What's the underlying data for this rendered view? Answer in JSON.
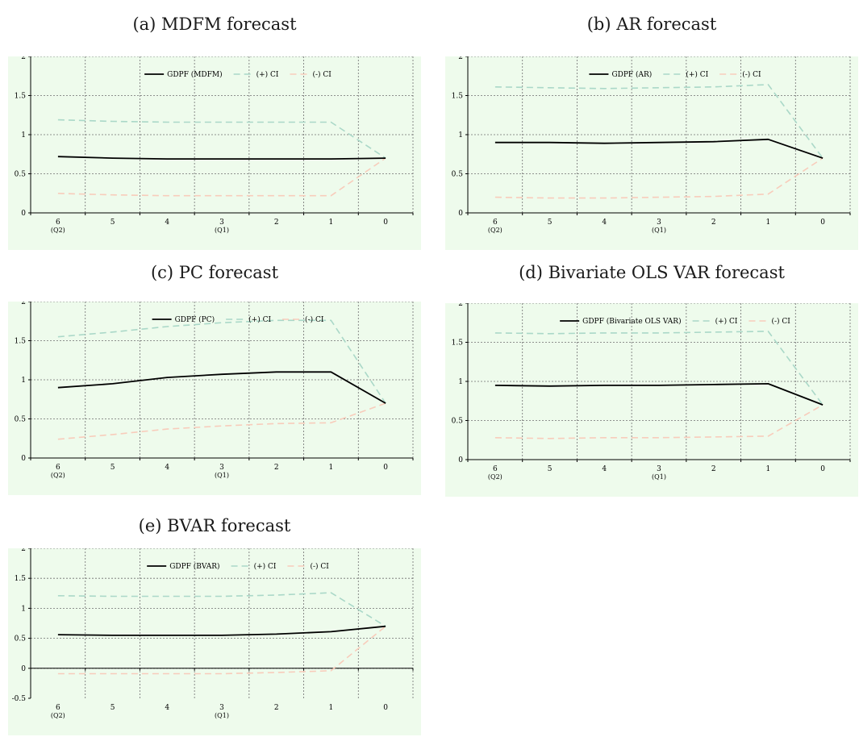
{
  "chart_data": [
    {
      "type": "line",
      "title": "(a) MDFM forecast",
      "categories": [
        "6",
        "5",
        "4",
        "3",
        "2",
        "1",
        "0"
      ],
      "category_sublabels": [
        "(Q2)",
        "",
        "",
        "(Q1)",
        "",
        "",
        ""
      ],
      "ylim": [
        0,
        2
      ],
      "yticks": [
        "0",
        "0.5",
        "1",
        "1.5",
        "2"
      ],
      "grid": true,
      "legend_position": "top",
      "series": [
        {
          "name": "GDPF (MDFM)",
          "color": "#000000",
          "dashed": false,
          "values": [
            0.72,
            0.7,
            0.69,
            0.69,
            0.69,
            0.69,
            0.7
          ]
        },
        {
          "name": "(+) CI",
          "color": "#aad8c8",
          "dashed": true,
          "values": [
            1.19,
            1.17,
            1.16,
            1.16,
            1.16,
            1.16,
            0.7
          ]
        },
        {
          "name": "(-) CI",
          "color": "#f8ccbb",
          "dashed": true,
          "values": [
            0.25,
            0.23,
            0.22,
            0.22,
            0.22,
            0.22,
            0.7
          ]
        }
      ]
    },
    {
      "type": "line",
      "title": "(b) AR forecast",
      "categories": [
        "6",
        "5",
        "4",
        "3",
        "2",
        "1",
        "0"
      ],
      "category_sublabels": [
        "(Q2)",
        "",
        "",
        "(Q1)",
        "",
        "",
        ""
      ],
      "ylim": [
        0,
        2
      ],
      "yticks": [
        "0",
        "0.5",
        "1",
        "1.5",
        "2"
      ],
      "grid": true,
      "legend_position": "top",
      "series": [
        {
          "name": "GDPF (AR)",
          "color": "#000000",
          "dashed": false,
          "values": [
            0.9,
            0.9,
            0.89,
            0.9,
            0.91,
            0.94,
            0.7
          ]
        },
        {
          "name": "(+) CI",
          "color": "#aad8c8",
          "dashed": true,
          "values": [
            1.61,
            1.6,
            1.59,
            1.6,
            1.61,
            1.64,
            0.7
          ]
        },
        {
          "name": "(-) CI",
          "color": "#f8ccbb",
          "dashed": true,
          "values": [
            0.2,
            0.19,
            0.19,
            0.2,
            0.21,
            0.24,
            0.7
          ]
        }
      ]
    },
    {
      "type": "line",
      "title": "(c) PC forecast",
      "categories": [
        "6",
        "5",
        "4",
        "3",
        "2",
        "1",
        "0"
      ],
      "category_sublabels": [
        "(Q2)",
        "",
        "",
        "(Q1)",
        "",
        "",
        ""
      ],
      "ylim": [
        0,
        2
      ],
      "yticks": [
        "0",
        "0.5",
        "1",
        "1.5",
        "2"
      ],
      "grid": true,
      "legend_position": "top",
      "series": [
        {
          "name": "GDPF (PC)",
          "color": "#000000",
          "dashed": false,
          "values": [
            0.9,
            0.95,
            1.03,
            1.07,
            1.1,
            1.1,
            0.7
          ]
        },
        {
          "name": "(+) CI",
          "color": "#aad8c8",
          "dashed": true,
          "values": [
            1.55,
            1.61,
            1.68,
            1.73,
            1.76,
            1.76,
            0.7
          ]
        },
        {
          "name": "(-) CI",
          "color": "#f8ccbb",
          "dashed": true,
          "values": [
            0.24,
            0.3,
            0.37,
            0.41,
            0.44,
            0.45,
            0.7
          ]
        }
      ]
    },
    {
      "type": "line",
      "title": "(d) Bivariate OLS VAR forecast",
      "categories": [
        "6",
        "5",
        "4",
        "3",
        "2",
        "1",
        "0"
      ],
      "category_sublabels": [
        "(Q2)",
        "",
        "",
        "(Q1)",
        "",
        "",
        ""
      ],
      "ylim": [
        0,
        2
      ],
      "yticks": [
        "0",
        "0.5",
        "1",
        "1.5",
        "2"
      ],
      "grid": true,
      "legend_position": "top",
      "series": [
        {
          "name": "GDPF (Bivariate OLS VAR)",
          "color": "#000000",
          "dashed": false,
          "values": [
            0.95,
            0.94,
            0.95,
            0.95,
            0.96,
            0.97,
            0.7
          ]
        },
        {
          "name": "(+) CI",
          "color": "#aad8c8",
          "dashed": true,
          "values": [
            1.62,
            1.61,
            1.62,
            1.62,
            1.63,
            1.64,
            0.7
          ]
        },
        {
          "name": "(-) CI",
          "color": "#f8ccbb",
          "dashed": true,
          "values": [
            0.28,
            0.27,
            0.28,
            0.28,
            0.29,
            0.3,
            0.7
          ]
        }
      ]
    },
    {
      "type": "line",
      "title": "(e) BVAR forecast",
      "categories": [
        "6",
        "5",
        "4",
        "3",
        "2",
        "1",
        "0"
      ],
      "category_sublabels": [
        "(Q2)",
        "",
        "",
        "(Q1)",
        "",
        "",
        ""
      ],
      "ylim": [
        -0.5,
        2
      ],
      "yticks": [
        "-0.5",
        "0",
        "0.5",
        "1",
        "1.5",
        "2"
      ],
      "grid": true,
      "legend_position": "top",
      "series": [
        {
          "name": "GDPF (BVAR)",
          "color": "#000000",
          "dashed": false,
          "values": [
            0.56,
            0.55,
            0.55,
            0.55,
            0.57,
            0.61,
            0.7
          ]
        },
        {
          "name": "(+) CI",
          "color": "#aad8c8",
          "dashed": true,
          "values": [
            1.21,
            1.2,
            1.2,
            1.2,
            1.22,
            1.26,
            0.7
          ]
        },
        {
          "name": "(-) CI",
          "color": "#f8ccbb",
          "dashed": true,
          "values": [
            -0.09,
            -0.09,
            -0.09,
            -0.09,
            -0.07,
            -0.04,
            0.7
          ]
        }
      ]
    }
  ]
}
